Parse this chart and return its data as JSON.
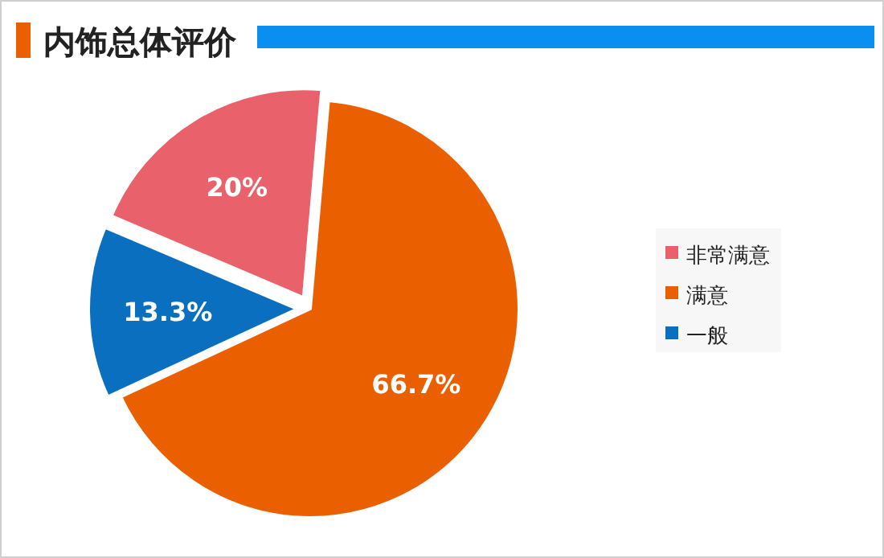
{
  "chart_data": {
    "type": "pie",
    "title": "内饰总体评价",
    "categories": [
      "非常满意",
      "满意",
      "一般"
    ],
    "values": [
      20,
      66.7,
      13.3
    ],
    "colors": [
      "#e8616b",
      "#ea6000",
      "#0b6fc0"
    ],
    "value_labels": [
      "20%",
      "66.7%",
      "13.3%"
    ],
    "legend": "right"
  }
}
